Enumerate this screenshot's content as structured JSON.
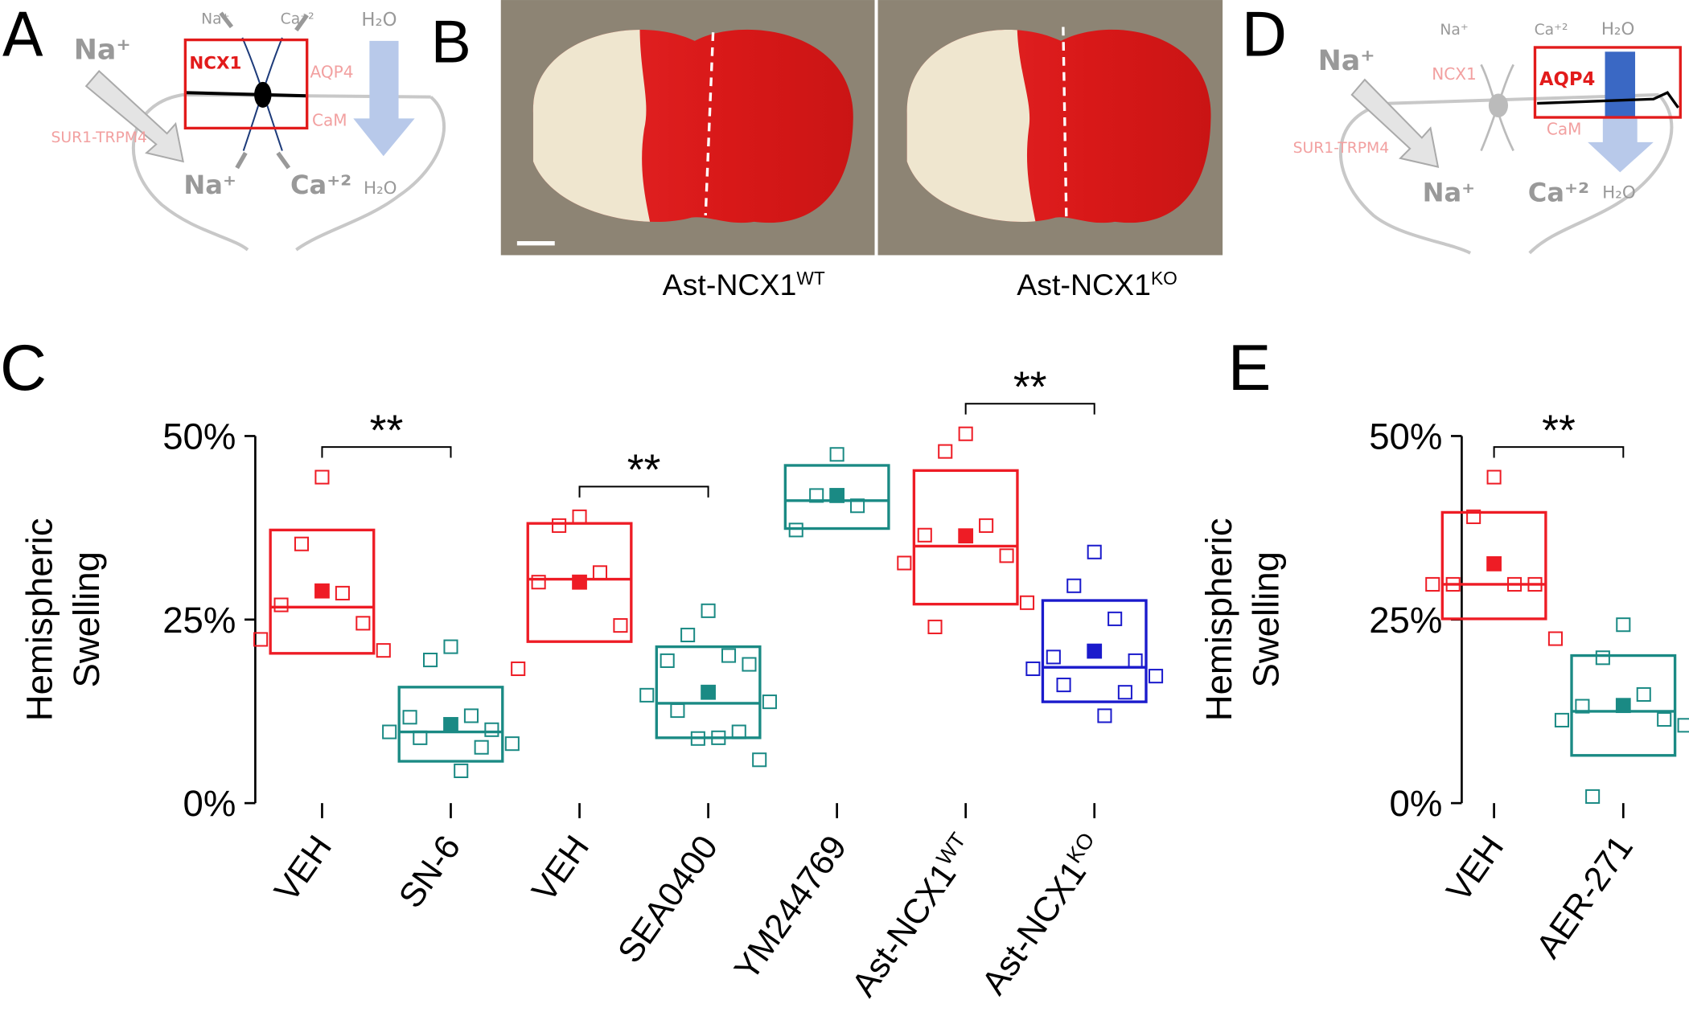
{
  "diagram_a": {
    "panel_label": "A",
    "labels": [
      "Na⁺",
      "SUR1-TRPM4",
      "NCX1",
      "Na⁺",
      "Ca⁺²",
      "AQP4",
      "CaM",
      "H₂O",
      "Na⁺",
      "Ca⁺²",
      "H₂O"
    ]
  },
  "photo_b": {
    "panel_label": "B",
    "captions": [
      {
        "text": "Ast-NCX1",
        "sup": "WT"
      },
      {
        "text": "Ast-NCX1",
        "sup": "KO"
      }
    ]
  },
  "diagram_d": {
    "panel_label": "D",
    "labels": [
      "Na⁺",
      "SUR1-TRPM4",
      "Na⁺",
      "Ca⁺²",
      "H₂O",
      "NCX1",
      "AQP4",
      "CaM",
      "Na⁺",
      "Ca⁺²",
      "H₂O"
    ]
  },
  "chart_data": [
    {
      "type": "box",
      "panel_label": "C",
      "ylabel": [
        "Hemispheric",
        "Swelling"
      ],
      "categories": [
        "VEH",
        "SN-6",
        "VEH",
        "SEA0400",
        "YM244769",
        "Ast-NCX1",
        "Ast-NCX1"
      ],
      "category_superscripts": [
        null,
        null,
        null,
        null,
        null,
        "WT",
        "KO"
      ],
      "ylim": [
        0,
        50
      ],
      "yticks": [
        {
          "value": 0,
          "label": "0%"
        },
        {
          "value": 25,
          "label": "25%"
        },
        {
          "value": 50,
          "label": "50%"
        }
      ],
      "boxes": [
        {
          "color": "#ee1c25",
          "q1": 20.4,
          "median": 26.7,
          "q3": 37.2,
          "mean": 28.9,
          "points": [
            44.4,
            35.3,
            28.6,
            27.0,
            24.5,
            22.3,
            20.8
          ]
        },
        {
          "color": "#1a8a84",
          "q1": 5.7,
          "median": 9.7,
          "q3": 15.8,
          "mean": 10.7,
          "points": [
            21.3,
            19.5,
            11.9,
            11.7,
            10.0,
            9.7,
            8.1,
            8.9,
            7.6,
            4.4
          ]
        },
        {
          "color": "#ee1c25",
          "q1": 22.0,
          "median": 30.5,
          "q3": 38.1,
          "mean": 30.1,
          "points": [
            39.0,
            37.8,
            31.4,
            30.1,
            24.2,
            18.3
          ]
        },
        {
          "color": "#1a8a84",
          "q1": 8.9,
          "median": 13.6,
          "q3": 21.3,
          "mean": 15.1,
          "points": [
            26.2,
            22.9,
            20.1,
            19.4,
            18.9,
            14.7,
            13.8,
            12.6,
            9.7,
            8.9,
            8.8,
            5.9
          ]
        },
        {
          "color": "#1a8a84",
          "q1": 37.4,
          "median": 41.2,
          "q3": 46.0,
          "mean": 41.9,
          "points": [
            47.5,
            41.9,
            40.5,
            37.2
          ]
        },
        {
          "color": "#ee1c25",
          "q1": 27.1,
          "median": 35.0,
          "q3": 45.3,
          "mean": 36.4,
          "points": [
            50.3,
            47.9,
            37.8,
            36.5,
            33.7,
            32.7,
            27.3,
            24.0
          ]
        },
        {
          "color": "#1a1acc",
          "q1": 13.8,
          "median": 18.5,
          "q3": 27.6,
          "mean": 20.7,
          "points": [
            34.2,
            29.6,
            25.1,
            19.9,
            19.4,
            18.3,
            17.3,
            16.1,
            15.1,
            11.9
          ]
        }
      ],
      "significance": [
        {
          "from": 0,
          "to": 1,
          "label": "**"
        },
        {
          "from": 2,
          "to": 3,
          "label": "**"
        },
        {
          "from": 5,
          "to": 6,
          "label": "**"
        }
      ]
    },
    {
      "type": "box",
      "panel_label": "E",
      "ylabel": [
        "Hemispheric",
        "Swelling"
      ],
      "categories": [
        "VEH",
        "AER-271"
      ],
      "category_superscripts": [
        null,
        null
      ],
      "ylim": [
        0,
        50
      ],
      "yticks": [
        {
          "value": 0,
          "label": "0%"
        },
        {
          "value": 25,
          "label": "25%"
        },
        {
          "value": 50,
          "label": "50%"
        }
      ],
      "boxes": [
        {
          "color": "#ee1c25",
          "q1": 25.1,
          "median": 29.8,
          "q3": 39.6,
          "mean": 32.6,
          "points": [
            44.4,
            39.0,
            29.8,
            29.8,
            29.8,
            29.8,
            22.4
          ]
        },
        {
          "color": "#1a8a84",
          "q1": 6.5,
          "median": 12.5,
          "q3": 20.1,
          "mean": 13.3,
          "points": [
            24.3,
            19.8,
            14.8,
            13.2,
            11.4,
            11.3,
            10.6,
            0.9
          ]
        }
      ],
      "significance": [
        {
          "from": 0,
          "to": 1,
          "label": "**"
        }
      ]
    }
  ]
}
